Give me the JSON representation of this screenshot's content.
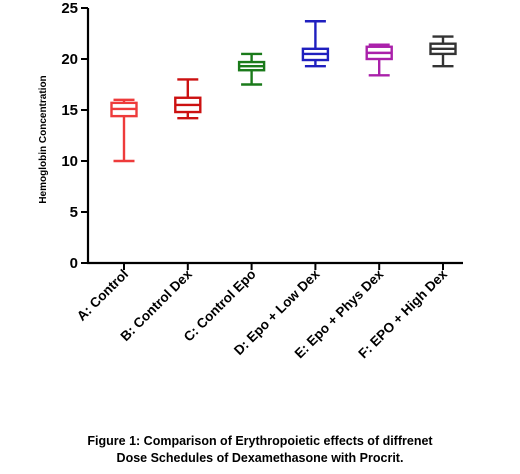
{
  "chart_data": {
    "type": "box",
    "ylabel": "Hemoglobin Concentration",
    "ylim": [
      0,
      25
    ],
    "yticks": [
      0,
      5,
      10,
      15,
      20,
      25
    ],
    "categories": [
      "A: Control",
      "B: Control Dex",
      "C: Control Epo",
      "D: Epo + Low Dex",
      "E: Epo + Phys Dex",
      "F: EPO + High Dex"
    ],
    "series": [
      {
        "min": 10.0,
        "q1": 14.4,
        "median": 15.1,
        "q3": 15.7,
        "max": 16.0,
        "color": "#ee3b3b"
      },
      {
        "min": 14.2,
        "q1": 14.8,
        "median": 15.5,
        "q3": 16.2,
        "max": 18.0,
        "color": "#cc1111"
      },
      {
        "min": 17.5,
        "q1": 18.9,
        "median": 19.3,
        "q3": 19.7,
        "max": 20.5,
        "color": "#1a7a1a"
      },
      {
        "min": 19.3,
        "q1": 19.9,
        "median": 20.5,
        "q3": 21.0,
        "max": 23.7,
        "color": "#1f1fbf"
      },
      {
        "min": 18.4,
        "q1": 20.0,
        "median": 20.6,
        "q3": 21.2,
        "max": 21.4,
        "color": "#aa20aa"
      },
      {
        "min": 19.3,
        "q1": 20.5,
        "median": 21.0,
        "q3": 21.5,
        "max": 22.2,
        "color": "#333333"
      }
    ]
  },
  "caption": {
    "line1": "Figure 1: Comparison of Erythropoietic effects of diffrenet",
    "line2": "Dose Schedules of Dexamethasone with Procrit."
  }
}
